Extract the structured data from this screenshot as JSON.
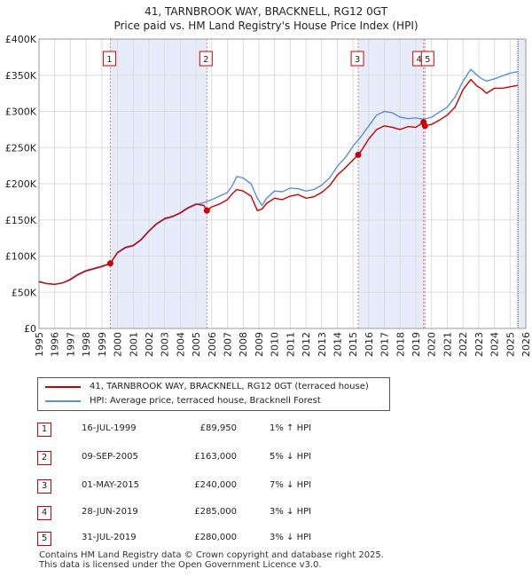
{
  "header": {
    "title": "41, TARNBROOK WAY, BRACKNELL, RG12 0GT",
    "subtitle": "Price paid vs. HM Land Registry's House Price Index (HPI)"
  },
  "chart_data": {
    "type": "line",
    "title": "41, TARNBROOK WAY, BRACKNELL, RG12 0GT",
    "xlabel": "",
    "ylabel": "",
    "xlim": [
      1995,
      2026
    ],
    "ylim": [
      0,
      400000
    ],
    "y_ticks": [
      0,
      50000,
      100000,
      150000,
      200000,
      250000,
      300000,
      350000,
      400000
    ],
    "y_tick_labels": [
      "£0",
      "£50K",
      "£100K",
      "£150K",
      "£200K",
      "£250K",
      "£300K",
      "£350K",
      "£400K"
    ],
    "x_ticks": [
      1995,
      1996,
      1997,
      1998,
      1999,
      2000,
      2001,
      2002,
      2003,
      2004,
      2005,
      2006,
      2007,
      2008,
      2009,
      2010,
      2011,
      2012,
      2013,
      2014,
      2015,
      2016,
      2017,
      2018,
      2019,
      2020,
      2021,
      2022,
      2023,
      2024,
      2025,
      2026
    ],
    "grid": true,
    "series": [
      {
        "name": "41, TARNBROOK WAY, BRACKNELL, RG12 0GT (terraced house)",
        "color": "#cc0000",
        "x": [
          1995.0,
          1995.5,
          1996.0,
          1996.5,
          1997.0,
          1997.5,
          1998.0,
          1998.5,
          1999.0,
          1999.54,
          2000.0,
          2000.5,
          2001.0,
          2001.5,
          2002.0,
          2002.5,
          2003.0,
          2003.5,
          2004.0,
          2004.5,
          2005.0,
          2005.5,
          2005.69,
          2006.0,
          2006.5,
          2007.0,
          2007.3,
          2007.6,
          2008.0,
          2008.5,
          2008.9,
          2009.2,
          2009.5,
          2010.0,
          2010.5,
          2011.0,
          2011.5,
          2012.0,
          2012.5,
          2013.0,
          2013.5,
          2014.0,
          2014.5,
          2015.0,
          2015.33,
          2015.6,
          2016.0,
          2016.5,
          2017.0,
          2017.5,
          2018.0,
          2018.5,
          2019.0,
          2019.49,
          2019.58,
          2020.0,
          2020.5,
          2021.0,
          2021.5,
          2022.0,
          2022.5,
          2022.9,
          2023.2,
          2023.5,
          2024.0,
          2024.5,
          2025.0,
          2025.5
        ],
        "values": [
          65000,
          62000,
          61000,
          63000,
          68000,
          75000,
          80000,
          83000,
          86000,
          89950,
          105000,
          112000,
          115000,
          123000,
          135000,
          145000,
          152000,
          155000,
          160000,
          167000,
          172000,
          170000,
          163000,
          168000,
          172000,
          178000,
          186000,
          192000,
          190000,
          183000,
          163000,
          165000,
          173000,
          180000,
          178000,
          183000,
          185000,
          180000,
          182000,
          188000,
          197000,
          212000,
          222000,
          233000,
          240000,
          248000,
          262000,
          275000,
          280000,
          278000,
          275000,
          279000,
          278000,
          285000,
          280000,
          282000,
          288000,
          295000,
          306000,
          330000,
          344000,
          335000,
          331000,
          325000,
          332000,
          332000,
          334000,
          336000
        ]
      },
      {
        "name": "HPI: Average price, terraced house, Bracknell Forest",
        "color": "#5b8fd6",
        "x": [
          1995.0,
          1995.5,
          1996.0,
          1996.5,
          1997.0,
          1997.5,
          1998.0,
          1998.5,
          1999.0,
          1999.5,
          2000.0,
          2000.5,
          2001.0,
          2001.5,
          2002.0,
          2002.5,
          2003.0,
          2003.5,
          2004.0,
          2004.5,
          2005.0,
          2005.5,
          2006.0,
          2006.5,
          2007.0,
          2007.3,
          2007.6,
          2008.0,
          2008.5,
          2008.9,
          2009.2,
          2009.5,
          2010.0,
          2010.5,
          2011.0,
          2011.5,
          2012.0,
          2012.5,
          2013.0,
          2013.5,
          2014.0,
          2014.5,
          2015.0,
          2015.5,
          2016.0,
          2016.5,
          2017.0,
          2017.5,
          2018.0,
          2018.5,
          2019.0,
          2019.5,
          2020.0,
          2020.5,
          2021.0,
          2021.5,
          2022.0,
          2022.5,
          2022.9,
          2023.2,
          2023.5,
          2024.0,
          2024.5,
          2025.0,
          2025.5
        ],
        "values": [
          64000,
          62000,
          61000,
          63000,
          67000,
          74000,
          79000,
          82000,
          85000,
          89000,
          104000,
          111000,
          114000,
          122000,
          134000,
          144000,
          151000,
          154000,
          159000,
          166000,
          171000,
          174000,
          178000,
          183000,
          188000,
          197000,
          210000,
          208000,
          200000,
          180000,
          170000,
          180000,
          190000,
          189000,
          194000,
          193000,
          190000,
          192000,
          198000,
          208000,
          224000,
          236000,
          252000,
          265000,
          280000,
          295000,
          300000,
          298000,
          292000,
          290000,
          291000,
          289000,
          292000,
          299000,
          306000,
          320000,
          342000,
          358000,
          350000,
          345000,
          342000,
          345000,
          349000,
          353000,
          355000
        ]
      }
    ],
    "sale_markers": [
      {
        "label": "1",
        "x": 1999.54,
        "value": 89950
      },
      {
        "label": "2",
        "x": 2005.69,
        "value": 163000
      },
      {
        "label": "3",
        "x": 2015.33,
        "value": 240000
      },
      {
        "label": "4",
        "x": 2019.49,
        "value": 285000
      },
      {
        "label": "5",
        "x": 2019.58,
        "value": 280000
      }
    ],
    "shaded_ranges": [
      [
        1999.54,
        2005.69
      ],
      [
        2015.33,
        2019.58
      ],
      [
        2025.5,
        2026
      ]
    ]
  },
  "legend": {
    "property_label": "41, TARNBROOK WAY, BRACKNELL, RG12 0GT (terraced house)",
    "property_color": "#cc0000",
    "hpi_label": "HPI: Average price, terraced house, Bracknell Forest",
    "hpi_color": "#5b8fd6"
  },
  "sales": [
    {
      "num": "1",
      "date": "16-JUL-1999",
      "price": "£89,950",
      "hpi": "1% ↑ HPI"
    },
    {
      "num": "2",
      "date": "09-SEP-2005",
      "price": "£163,000",
      "hpi": "5% ↓ HPI"
    },
    {
      "num": "3",
      "date": "01-MAY-2015",
      "price": "£240,000",
      "hpi": "7% ↓ HPI"
    },
    {
      "num": "4",
      "date": "28-JUN-2019",
      "price": "£285,000",
      "hpi": "3% ↓ HPI"
    },
    {
      "num": "5",
      "date": "31-JUL-2019",
      "price": "£280,000",
      "hpi": "3% ↓ HPI"
    }
  ],
  "footer": {
    "line1": "Contains HM Land Registry data © Crown copyright and database right 2025.",
    "line2": "This data is licensed under the Open Government Licence v3.0."
  }
}
